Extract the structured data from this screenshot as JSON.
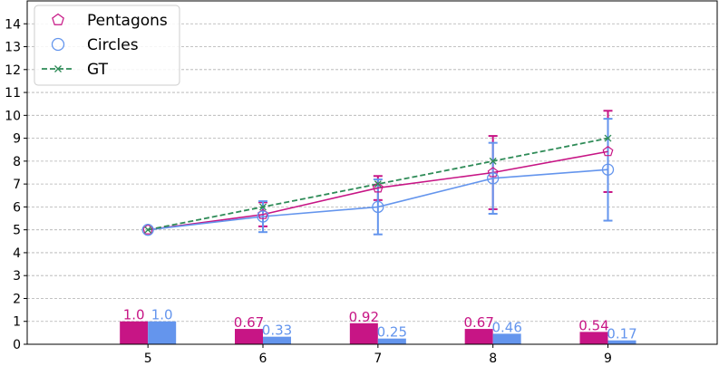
{
  "chart_data": {
    "type": "line",
    "x": [
      5,
      6,
      7,
      8,
      9
    ],
    "xlim": [
      3.95,
      9.95
    ],
    "ylim": [
      0,
      15
    ],
    "yticks": [
      0,
      1,
      2,
      3,
      4,
      5,
      6,
      7,
      8,
      9,
      10,
      11,
      12,
      13,
      14
    ],
    "xticks": [
      5,
      6,
      7,
      8,
      9
    ],
    "grid": "horizontal-dashed",
    "legend_position": "top-left",
    "series": [
      {
        "name": "Pentagons",
        "color": "#c71585",
        "marker": "pentagon",
        "values": [
          5.0,
          5.67,
          6.83,
          7.5,
          8.42
        ],
        "error": [
          [
            5.0,
            5.0
          ],
          [
            5.15,
            6.2
          ],
          [
            6.3,
            7.35
          ],
          [
            5.9,
            9.1
          ],
          [
            6.65,
            10.2
          ]
        ],
        "bars": [
          1.0,
          0.67,
          0.92,
          0.67,
          0.54
        ],
        "bar_labels": [
          "1.0",
          "0.67",
          "0.92",
          "0.67",
          "0.54"
        ]
      },
      {
        "name": "Circles",
        "color": "#6495ed",
        "marker": "circle",
        "values": [
          5.0,
          5.58,
          6.0,
          7.25,
          7.63
        ],
        "error": [
          [
            5.0,
            5.0
          ],
          [
            4.9,
            6.25
          ],
          [
            4.8,
            7.2
          ],
          [
            5.7,
            8.8
          ],
          [
            5.4,
            9.85
          ]
        ],
        "bars": [
          1.0,
          0.33,
          0.25,
          0.46,
          0.17
        ],
        "bar_labels": [
          "1.0",
          "0.33",
          "0.25",
          "0.46",
          "0.17"
        ]
      },
      {
        "name": "GT",
        "color": "#2e8b57",
        "marker": "x",
        "dashed": true,
        "values": [
          5,
          6,
          7,
          8,
          9
        ]
      }
    ]
  }
}
